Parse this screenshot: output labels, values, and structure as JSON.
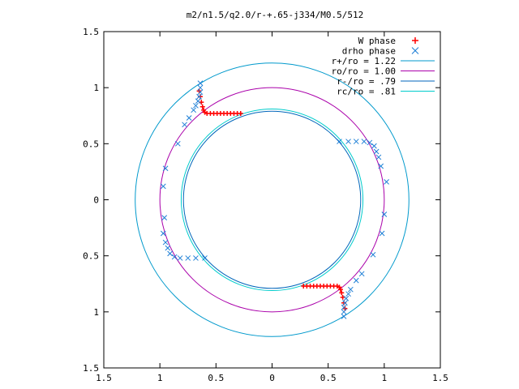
{
  "chart_data": {
    "type": "scatter",
    "title": "m2/n1.5/q2.0/r-+.65-j334/M0.5/512",
    "xlabel": "",
    "ylabel": "",
    "xlim": [
      -1.5,
      1.5
    ],
    "ylim": [
      -1.5,
      1.5
    ],
    "x_ticks": [
      -1.5,
      -1,
      -0.5,
      0,
      0.5,
      1,
      1.5
    ],
    "y_ticks": [
      -1.5,
      -1,
      -0.5,
      0,
      0.5,
      1,
      1.5
    ],
    "x_tick_labels": [
      "1.5",
      "1",
      "0.5",
      "0",
      "0.5",
      "1",
      "1.5"
    ],
    "y_tick_labels": [
      "1.5",
      "1",
      "0.5",
      "0",
      "0.5",
      "1",
      "1.5"
    ],
    "grid": false,
    "legend_position": "top-right",
    "legend": [
      {
        "label": "W phase",
        "color": "#ff0000",
        "marker": "plus"
      },
      {
        "label": "drho phase",
        "color": "#1e7fd6",
        "marker": "cross"
      },
      {
        "label": "r+/ro = 1.22",
        "color": "#0099cc",
        "marker": "line"
      },
      {
        "label": "ro/ro = 1.00",
        "color": "#aa00aa",
        "marker": "line"
      },
      {
        "label": "r-/ro = .79",
        "color": "#0066bb",
        "marker": "line"
      },
      {
        "label": "rc/ro = .81",
        "color": "#00cccc",
        "marker": "line"
      }
    ],
    "circles": [
      {
        "name": "r+/ro = 1.22",
        "radius": 1.22,
        "color": "#0099cc"
      },
      {
        "name": "ro/ro = 1.00",
        "radius": 1.0,
        "color": "#aa00aa"
      },
      {
        "name": "r-/ro = .79",
        "radius": 0.79,
        "color": "#0066bb"
      },
      {
        "name": "rc/ro = .81",
        "radius": 0.81,
        "color": "#00cccc"
      }
    ],
    "series": [
      {
        "name": "W phase",
        "color": "#ff0000",
        "points": [
          [
            -0.65,
            0.97
          ],
          [
            -0.64,
            0.92
          ],
          [
            -0.63,
            0.87
          ],
          [
            -0.62,
            0.83
          ],
          [
            -0.61,
            0.8
          ],
          [
            -0.6,
            0.78
          ],
          [
            -0.58,
            0.77
          ],
          [
            -0.55,
            0.77
          ],
          [
            -0.52,
            0.77
          ],
          [
            -0.49,
            0.77
          ],
          [
            -0.46,
            0.77
          ],
          [
            -0.43,
            0.77
          ],
          [
            -0.4,
            0.77
          ],
          [
            -0.37,
            0.77
          ],
          [
            -0.34,
            0.77
          ],
          [
            -0.31,
            0.77
          ],
          [
            -0.28,
            0.77
          ],
          [
            0.65,
            -0.97
          ],
          [
            0.64,
            -0.92
          ],
          [
            0.63,
            -0.87
          ],
          [
            0.62,
            -0.83
          ],
          [
            0.61,
            -0.8
          ],
          [
            0.6,
            -0.78
          ],
          [
            0.58,
            -0.77
          ],
          [
            0.55,
            -0.77
          ],
          [
            0.52,
            -0.77
          ],
          [
            0.49,
            -0.77
          ],
          [
            0.46,
            -0.77
          ],
          [
            0.43,
            -0.77
          ],
          [
            0.4,
            -0.77
          ],
          [
            0.37,
            -0.77
          ],
          [
            0.34,
            -0.77
          ],
          [
            0.31,
            -0.77
          ],
          [
            0.28,
            -0.77
          ]
        ]
      },
      {
        "name": "drho phase",
        "color": "#1e7fd6",
        "points": [
          [
            -0.64,
            1.04
          ],
          [
            -0.64,
            1.0
          ],
          [
            -0.64,
            0.96
          ],
          [
            -0.65,
            0.92
          ],
          [
            -0.66,
            0.88
          ],
          [
            -0.68,
            0.84
          ],
          [
            -0.7,
            0.8
          ],
          [
            -0.74,
            0.73
          ],
          [
            -0.78,
            0.67
          ],
          [
            -0.84,
            0.5
          ],
          [
            -0.95,
            0.28
          ],
          [
            -0.97,
            0.12
          ],
          [
            -0.96,
            -0.16
          ],
          [
            -0.97,
            -0.3
          ],
          [
            -0.95,
            -0.38
          ],
          [
            -0.93,
            -0.43
          ],
          [
            -0.91,
            -0.48
          ],
          [
            -0.87,
            -0.51
          ],
          [
            -0.82,
            -0.52
          ],
          [
            -0.75,
            -0.52
          ],
          [
            -0.68,
            -0.52
          ],
          [
            -0.6,
            -0.52
          ],
          [
            0.64,
            -1.04
          ],
          [
            0.64,
            -1.0
          ],
          [
            0.64,
            -0.96
          ],
          [
            0.65,
            -0.92
          ],
          [
            0.66,
            -0.88
          ],
          [
            0.68,
            -0.84
          ],
          [
            0.7,
            -0.8
          ],
          [
            0.75,
            -0.72
          ],
          [
            0.8,
            -0.66
          ],
          [
            0.9,
            -0.49
          ],
          [
            0.98,
            -0.3
          ],
          [
            1.0,
            -0.13
          ],
          [
            1.02,
            0.16
          ],
          [
            0.97,
            0.3
          ],
          [
            0.95,
            0.38
          ],
          [
            0.93,
            0.43
          ],
          [
            0.91,
            0.48
          ],
          [
            0.87,
            0.51
          ],
          [
            0.82,
            0.52
          ],
          [
            0.75,
            0.52
          ],
          [
            0.68,
            0.52
          ],
          [
            0.6,
            0.52
          ]
        ]
      }
    ]
  }
}
